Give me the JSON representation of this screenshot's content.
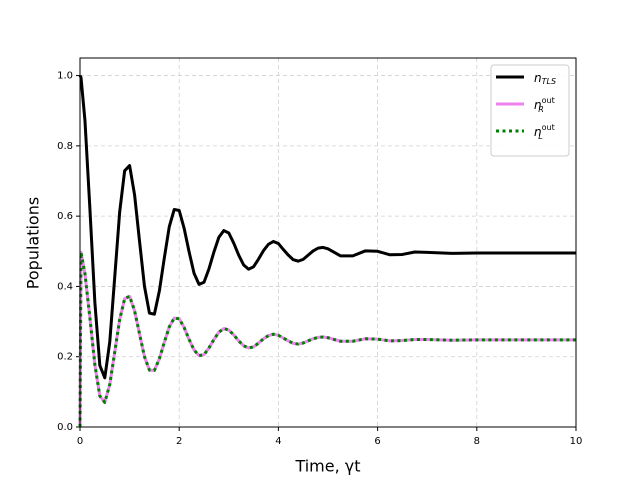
{
  "chart_data": {
    "type": "line",
    "xlabel": "Time, γt",
    "ylabel": "Populations",
    "x": [
      0,
      0.02,
      0.1,
      0.2,
      0.3,
      0.4,
      0.5,
      0.6,
      0.7,
      0.8,
      0.9,
      1.0,
      1.1,
      1.2,
      1.3,
      1.4,
      1.5,
      1.6,
      1.7,
      1.8,
      1.9,
      2.0,
      2.1,
      2.2,
      2.3,
      2.4,
      2.5,
      2.6,
      2.7,
      2.8,
      2.9,
      3.0,
      3.1,
      3.2,
      3.3,
      3.4,
      3.5,
      3.6,
      3.7,
      3.8,
      3.9,
      4.0,
      4.1,
      4.2,
      4.3,
      4.4,
      4.5,
      4.6,
      4.7,
      4.8,
      4.9,
      5.0,
      5.25,
      5.5,
      5.75,
      6.0,
      6.25,
      6.5,
      6.75,
      7.0,
      7.5,
      8.0,
      8.5,
      9.0,
      9.5,
      10.0
    ],
    "series": [
      {
        "name": "n_TLS",
        "color": "#000000",
        "style": "solid",
        "values": [
          1.0,
          0.995,
          0.872,
          0.62,
          0.354,
          0.175,
          0.14,
          0.242,
          0.426,
          0.612,
          0.729,
          0.744,
          0.661,
          0.529,
          0.4,
          0.324,
          0.321,
          0.387,
          0.481,
          0.57,
          0.619,
          0.616,
          0.565,
          0.498,
          0.437,
          0.406,
          0.412,
          0.45,
          0.498,
          0.54,
          0.559,
          0.552,
          0.523,
          0.489,
          0.461,
          0.449,
          0.456,
          0.478,
          0.502,
          0.52,
          0.528,
          0.522,
          0.505,
          0.489,
          0.476,
          0.472,
          0.477,
          0.489,
          0.501,
          0.509,
          0.511,
          0.507,
          0.487,
          0.487,
          0.501,
          0.5,
          0.49,
          0.491,
          0.498,
          0.497,
          0.494,
          0.495,
          0.495,
          0.495,
          0.495,
          0.495
        ]
      },
      {
        "name": "n_R^out",
        "color": "#ee82ee",
        "style": "solid",
        "values": [
          0,
          0.497,
          0.436,
          0.31,
          0.177,
          0.088,
          0.07,
          0.121,
          0.213,
          0.306,
          0.365,
          0.372,
          0.331,
          0.265,
          0.2,
          0.162,
          0.161,
          0.194,
          0.241,
          0.285,
          0.31,
          0.308,
          0.283,
          0.249,
          0.219,
          0.203,
          0.206,
          0.225,
          0.249,
          0.27,
          0.28,
          0.276,
          0.262,
          0.245,
          0.231,
          0.225,
          0.228,
          0.239,
          0.251,
          0.26,
          0.264,
          0.261,
          0.253,
          0.245,
          0.238,
          0.236,
          0.239,
          0.245,
          0.251,
          0.255,
          0.256,
          0.254,
          0.244,
          0.244,
          0.251,
          0.25,
          0.245,
          0.246,
          0.249,
          0.249,
          0.247,
          0.248,
          0.248,
          0.248,
          0.248,
          0.248
        ]
      },
      {
        "name": "n_L^out",
        "color": "#008000",
        "style": "dotted",
        "values": [
          0,
          0.497,
          0.436,
          0.31,
          0.177,
          0.088,
          0.07,
          0.121,
          0.213,
          0.306,
          0.365,
          0.372,
          0.331,
          0.265,
          0.2,
          0.162,
          0.161,
          0.194,
          0.241,
          0.285,
          0.31,
          0.308,
          0.283,
          0.249,
          0.219,
          0.203,
          0.206,
          0.225,
          0.249,
          0.27,
          0.28,
          0.276,
          0.262,
          0.245,
          0.231,
          0.225,
          0.228,
          0.239,
          0.251,
          0.26,
          0.264,
          0.261,
          0.253,
          0.245,
          0.238,
          0.236,
          0.239,
          0.245,
          0.251,
          0.255,
          0.256,
          0.254,
          0.244,
          0.244,
          0.251,
          0.25,
          0.245,
          0.246,
          0.249,
          0.249,
          0.247,
          0.248,
          0.248,
          0.248,
          0.248,
          0.248
        ]
      }
    ],
    "xlim": [
      0,
      10
    ],
    "xticks": [
      0,
      2,
      4,
      6,
      8,
      10
    ],
    "ylim": [
      0,
      1.05
    ],
    "yticks": [
      {
        "value": 0,
        "label": "0.0"
      },
      0.2,
      0.4,
      0.6,
      0.8,
      {
        "value": 1,
        "label": "1.0"
      }
    ],
    "grid": true,
    "legend": "upper right"
  }
}
